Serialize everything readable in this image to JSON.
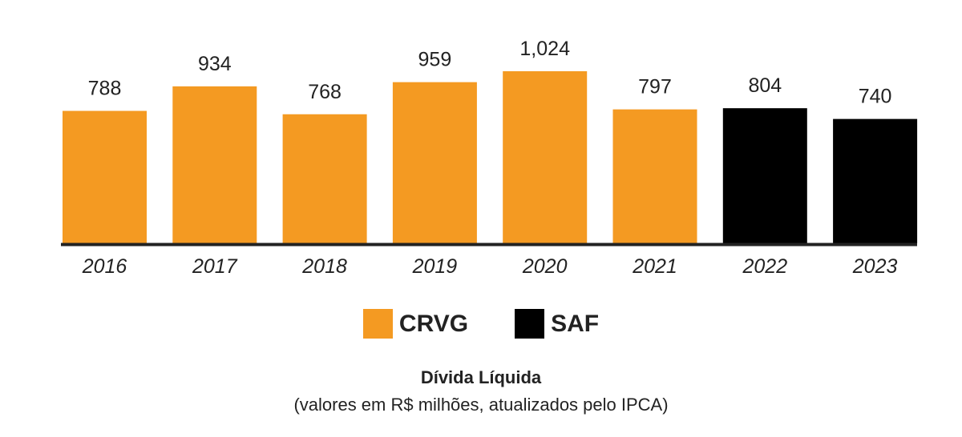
{
  "chart_data": {
    "type": "bar",
    "categories": [
      "2016",
      "2017",
      "2018",
      "2019",
      "2020",
      "2021",
      "2022",
      "2023"
    ],
    "values": [
      788,
      934,
      768,
      959,
      1024,
      797,
      804,
      740
    ],
    "value_labels": [
      "788",
      "934",
      "768",
      "959",
      "1,024",
      "797",
      "804",
      "740"
    ],
    "bar_groups": [
      "CRVG",
      "CRVG",
      "CRVG",
      "CRVG",
      "CRVG",
      "CRVG",
      "SAF",
      "SAF"
    ],
    "colors": {
      "CRVG": "#f49a22",
      "SAF": "#000000",
      "axis": "#222222"
    },
    "ylim": [
      0,
      1024
    ],
    "grid": false,
    "legend_placement": "bottom-center",
    "legend": [
      {
        "name": "CRVG",
        "color": "#f49a22"
      },
      {
        "name": "SAF",
        "color": "#000000"
      }
    ]
  },
  "caption": {
    "title": "Dívida Líquida",
    "subtitle": "(valores em R$ milhões, atualizados pelo IPCA)"
  }
}
